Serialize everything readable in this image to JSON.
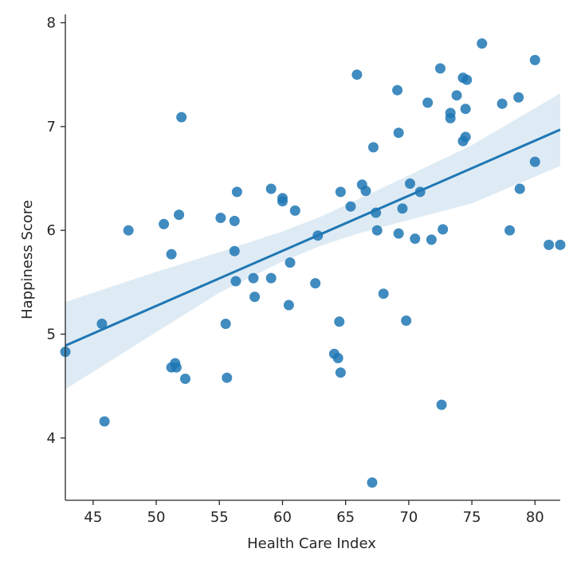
{
  "chart_data": {
    "type": "scatter",
    "title": "",
    "xlabel": "Health Care Index",
    "ylabel": "Happiness Score",
    "xlim": [
      42.8,
      82.0
    ],
    "ylim": [
      3.4,
      8.05
    ],
    "x_ticks": [
      45,
      50,
      55,
      60,
      65,
      70,
      75,
      80
    ],
    "y_ticks": [
      4,
      5,
      6,
      7,
      8
    ],
    "grid": false,
    "colors": {
      "points": "#1f77b4",
      "line": "#1f77b4",
      "band": "#1f77b4"
    },
    "points": [
      [
        42.8,
        4.83
      ],
      [
        45.7,
        5.1
      ],
      [
        45.9,
        4.16
      ],
      [
        47.8,
        6.0
      ],
      [
        50.6,
        6.06
      ],
      [
        51.2,
        5.77
      ],
      [
        51.2,
        4.68
      ],
      [
        51.5,
        4.72
      ],
      [
        51.6,
        4.68
      ],
      [
        51.8,
        6.15
      ],
      [
        52.0,
        7.09
      ],
      [
        52.3,
        4.57
      ],
      [
        55.1,
        6.12
      ],
      [
        55.5,
        5.1
      ],
      [
        55.6,
        4.58
      ],
      [
        56.2,
        6.09
      ],
      [
        56.2,
        5.8
      ],
      [
        56.3,
        5.51
      ],
      [
        56.4,
        6.37
      ],
      [
        57.7,
        5.54
      ],
      [
        57.8,
        5.36
      ],
      [
        59.1,
        6.4
      ],
      [
        59.1,
        5.54
      ],
      [
        60.0,
        6.31
      ],
      [
        60.0,
        6.28
      ],
      [
        60.5,
        5.28
      ],
      [
        60.6,
        5.69
      ],
      [
        61.0,
        6.19
      ],
      [
        62.6,
        5.49
      ],
      [
        62.8,
        5.95
      ],
      [
        64.1,
        4.81
      ],
      [
        64.4,
        4.77
      ],
      [
        64.5,
        5.12
      ],
      [
        64.6,
        6.37
      ],
      [
        64.6,
        4.63
      ],
      [
        65.4,
        6.23
      ],
      [
        65.9,
        7.5
      ],
      [
        66.3,
        6.44
      ],
      [
        66.6,
        6.38
      ],
      [
        67.1,
        3.57
      ],
      [
        67.2,
        6.8
      ],
      [
        67.4,
        6.17
      ],
      [
        67.5,
        6.0
      ],
      [
        68.0,
        5.39
      ],
      [
        69.1,
        7.35
      ],
      [
        69.2,
        6.94
      ],
      [
        69.2,
        5.97
      ],
      [
        69.5,
        6.21
      ],
      [
        69.8,
        5.13
      ],
      [
        70.1,
        6.45
      ],
      [
        70.5,
        5.92
      ],
      [
        70.9,
        6.37
      ],
      [
        71.5,
        7.23
      ],
      [
        71.8,
        5.91
      ],
      [
        72.5,
        7.56
      ],
      [
        72.6,
        4.32
      ],
      [
        72.7,
        6.01
      ],
      [
        73.3,
        7.13
      ],
      [
        73.3,
        7.08
      ],
      [
        73.8,
        7.3
      ],
      [
        74.3,
        7.47
      ],
      [
        74.3,
        6.86
      ],
      [
        74.5,
        7.17
      ],
      [
        74.5,
        6.9
      ],
      [
        74.6,
        7.45
      ],
      [
        75.8,
        7.8
      ],
      [
        77.4,
        7.22
      ],
      [
        78.0,
        6.0
      ],
      [
        78.7,
        7.28
      ],
      [
        78.8,
        6.4
      ],
      [
        80.0,
        7.64
      ],
      [
        80.0,
        6.66
      ],
      [
        81.1,
        5.86
      ],
      [
        82.0,
        5.86
      ]
    ],
    "regression": {
      "x": [
        42.8,
        82.0
      ],
      "y": [
        4.89,
        6.97
      ]
    },
    "confidence_band": {
      "x": [
        42.8,
        50,
        55,
        60,
        63,
        66,
        70,
        75,
        82
      ],
      "lower": [
        4.47,
        5.02,
        5.4,
        5.7,
        5.85,
        5.97,
        6.1,
        6.26,
        6.62
      ],
      "upper": [
        5.31,
        5.6,
        5.79,
        5.99,
        6.13,
        6.3,
        6.53,
        6.82,
        7.32
      ]
    }
  }
}
